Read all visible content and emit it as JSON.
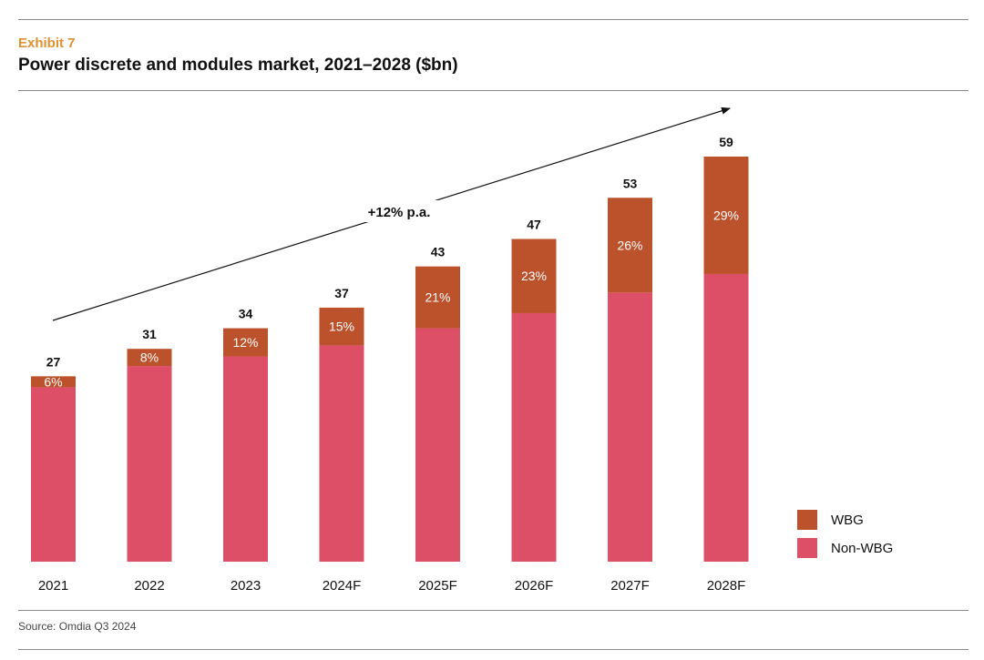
{
  "header": {
    "exhibit": "Exhibit  7",
    "title": "Power discrete and modules market, 2021–2028 ($bn)"
  },
  "footer": {
    "source": "Source: Omdia Q3 2024"
  },
  "colors": {
    "wbg": "#bc522b",
    "non_wbg": "#dd4f67",
    "accent": "#e0912f"
  },
  "chart_data": {
    "type": "bar",
    "stacked": true,
    "title": "Power discrete and modules market, 2021–2028 ($bn)",
    "xlabel": "",
    "ylabel": "$bn",
    "categories": [
      "2021",
      "2022",
      "2023",
      "2024F",
      "2025F",
      "2026F",
      "2027F",
      "2028F"
    ],
    "totals": [
      27,
      31,
      34,
      37,
      43,
      47,
      53,
      59
    ],
    "series": [
      {
        "name": "Non-WBG",
        "values": [
          25.4,
          28.5,
          29.9,
          31.5,
          34.0,
          36.2,
          39.2,
          41.9
        ]
      },
      {
        "name": "WBG",
        "values": [
          1.6,
          2.5,
          4.1,
          5.5,
          9.0,
          10.8,
          13.8,
          17.1
        ]
      }
    ],
    "wbg_share_labels": [
      "6%",
      "8%",
      "12%",
      "15%",
      "21%",
      "23%",
      "26%",
      "29%"
    ],
    "growth_annotation": "+12% p.a.",
    "ylim": [
      0,
      59
    ],
    "grid": false,
    "legend": {
      "position": "bottom-right",
      "entries": [
        "WBG",
        "Non-WBG"
      ]
    }
  }
}
